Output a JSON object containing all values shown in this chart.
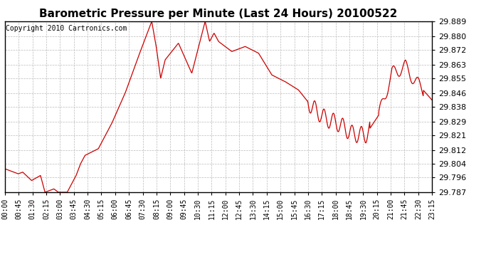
{
  "title": "Barometric Pressure per Minute (Last 24 Hours) 20100522",
  "copyright": "Copyright 2010 Cartronics.com",
  "line_color": "#cc0000",
  "background_color": "#ffffff",
  "grid_color": "#bbbbbb",
  "ylim": [
    29.787,
    29.889
  ],
  "yticks": [
    29.787,
    29.796,
    29.804,
    29.812,
    29.821,
    29.829,
    29.838,
    29.846,
    29.855,
    29.863,
    29.872,
    29.88,
    29.889
  ],
  "xtick_labels": [
    "00:00",
    "00:45",
    "01:30",
    "02:15",
    "03:00",
    "03:45",
    "04:30",
    "05:15",
    "06:00",
    "06:45",
    "07:30",
    "08:15",
    "09:00",
    "09:45",
    "10:30",
    "11:15",
    "12:00",
    "12:45",
    "13:30",
    "14:15",
    "15:00",
    "15:45",
    "16:30",
    "17:15",
    "18:00",
    "18:45",
    "19:30",
    "20:15",
    "21:00",
    "21:45",
    "22:30",
    "23:15"
  ],
  "n_points": 1440,
  "title_fontsize": 11,
  "copyright_fontsize": 7,
  "ytick_fontsize": 8,
  "xtick_fontsize": 7
}
